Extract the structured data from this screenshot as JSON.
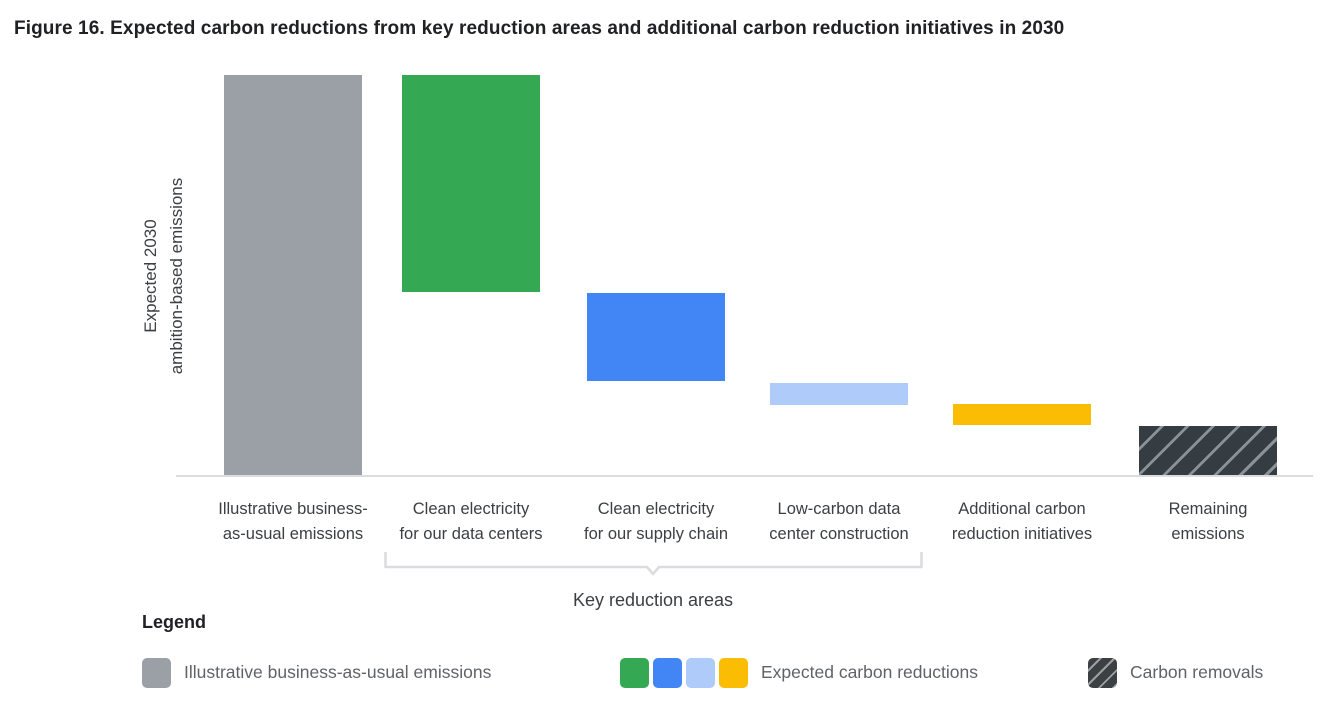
{
  "figure": {
    "title": "Figure 16. Expected carbon reductions from key reduction areas and additional carbon reduction initiatives in 2030"
  },
  "chart_data": {
    "type": "bar",
    "subtype": "waterfall",
    "y_axis_label_line1": "Expected 2030",
    "y_axis_label_line2": "ambition-based emissions",
    "value_basis": "percent of illustrative business-as-usual emissions, estimated from bar pixel extents (no numeric axis shown)",
    "ylim": [
      0,
      100
    ],
    "grid": false,
    "bars": [
      {
        "label_line1": "Illustrative business-",
        "label_line2": "as-usual emissions",
        "color": "#9aa0a6",
        "hatched": false,
        "from": 0,
        "to": 100,
        "role": "baseline"
      },
      {
        "label_line1": "Clean electricity",
        "label_line2": "for our data centers",
        "color": "#34a853",
        "hatched": false,
        "from": 45.75,
        "to": 100,
        "role": "reduction"
      },
      {
        "label_line1": "Clean electricity",
        "label_line2": "for our supply chain",
        "color": "#4285f4",
        "hatched": false,
        "from": 23.5,
        "to": 45.5,
        "role": "reduction"
      },
      {
        "label_line1": "Low-carbon data",
        "label_line2": "center construction",
        "color": "#aecbfa",
        "hatched": false,
        "from": 17.5,
        "to": 23,
        "role": "reduction"
      },
      {
        "label_line1": "Additional carbon",
        "label_line2": "reduction initiatives",
        "color": "#fbbc04",
        "hatched": false,
        "from": 12.5,
        "to": 17.75,
        "role": "reduction"
      },
      {
        "label_line1": "Remaining",
        "label_line2": "emissions",
        "color": "#3c4043",
        "hatched": true,
        "from": 0,
        "to": 12.25,
        "role": "remaining"
      }
    ],
    "annotation": {
      "label": "Key reduction areas",
      "covers_bars": [
        1,
        2,
        3
      ]
    }
  },
  "legend": {
    "heading": "Legend",
    "items": [
      {
        "label": "Illustrative business-as-usual emissions",
        "hatched": false,
        "swatches": [
          "#9aa0a6"
        ]
      },
      {
        "label": "Expected carbon reductions",
        "hatched": false,
        "swatches": [
          "#34a853",
          "#4285f4",
          "#aecbfa",
          "#fbbc04"
        ]
      },
      {
        "label": "Carbon removals",
        "hatched": true,
        "swatches": [
          "#3c4043"
        ]
      }
    ]
  },
  "colors": {
    "title_text": "#202124",
    "axis_text": "#3c4043",
    "legend_text": "#5f6368",
    "axis_line": "#dadce0",
    "brace_line": "#dadce0",
    "bau_gray": "#9aa0a6",
    "green": "#34a853",
    "blue": "#4285f4",
    "light_blue": "#aecbfa",
    "yellow": "#fbbc04",
    "removals_dark": "#3c4043"
  }
}
